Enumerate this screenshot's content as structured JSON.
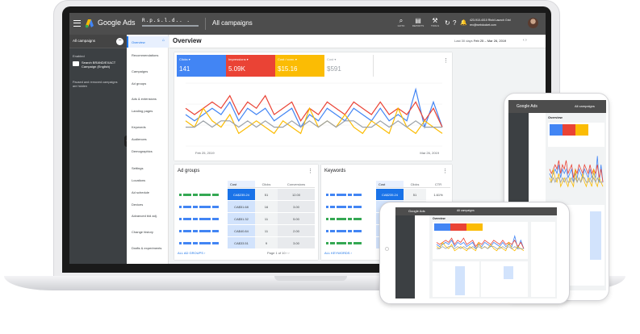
{
  "topbar": {
    "brand": "Google Ads",
    "account_name": "R.p.s.l.d..  .",
    "campaign_title": "All campaigns",
    "tools": [
      {
        "label": "GOTO",
        "icon": "search-icon",
        "glyph": "⌕"
      },
      {
        "label": "REPORTS",
        "icon": "reports-icon",
        "glyph": "▤"
      },
      {
        "label": "TOOLS",
        "icon": "wrench-icon",
        "glyph": "⚒"
      }
    ],
    "refresh_glyph": "↻",
    "help_glyph": "?",
    "notification_glyph": "🔔",
    "customer_id": "423-910-4010 Rishi Launch Grid",
    "customer_email": "rex@webdocket.com"
  },
  "left_panel": {
    "header": "All campaigns",
    "collapse_glyph": "−",
    "section": "Enabled",
    "campaign": "Search BRAND/EXACT Campaign (English)",
    "note": "Paused and removed campaigns are hidden",
    "edge_glyph": "‹"
  },
  "nav": {
    "items": [
      "Overview",
      "Recommendations",
      "Campaigns",
      "Ad groups",
      "Ads & extensions",
      "Landing pages",
      "Keywords",
      "Audiences",
      "Demographics",
      "Settings",
      "Locations",
      "Ad schedule",
      "Devices",
      "Advanced bid adj.",
      "Change history",
      "Drafts & experiments"
    ],
    "home_glyph": "⌂"
  },
  "main": {
    "title": "Overview",
    "date_prefix": "Last 30 days",
    "date_range": "Feb 25 – Mar 26, 2019",
    "date_arrows": "‹  ›",
    "menu_glyph": "⋮"
  },
  "metrics": [
    {
      "label": "Clicks ▾",
      "value": "141",
      "color": "#4285f4",
      "text_color": "#ffffff"
    },
    {
      "label": "Impressions ▾",
      "value": "5.09K",
      "color": "#ea4335",
      "text_color": "#ffffff"
    },
    {
      "label": "Cost / conv. ▾",
      "value": "$15.16",
      "color": "#fbbc04",
      "text_color": "#ffffff"
    },
    {
      "label": "Cost ▾",
      "value": "$591",
      "color": "#ffffff",
      "text_color": "#9aa0a6"
    }
  ],
  "chart_data": {
    "type": "line",
    "x_start_label": "Feb 25, 2019",
    "x_end_label": "Mar 26, 2019",
    "series": [
      {
        "values": [
          5,
          4,
          5,
          6,
          5,
          7,
          4,
          6,
          5,
          6,
          4,
          5,
          6,
          3,
          5,
          4,
          6,
          5,
          4,
          6,
          5,
          4,
          6,
          4,
          5,
          4,
          9,
          3,
          7,
          3
        ],
        "color": "#4285f4"
      },
      {
        "values": [
          6,
          5,
          6,
          7,
          6,
          8,
          5,
          7,
          6,
          8,
          5,
          6,
          7,
          4,
          6,
          5,
          7,
          6,
          5,
          7,
          6,
          5,
          7,
          5,
          6,
          5,
          7,
          4,
          6,
          3
        ],
        "color": "#ea4335"
      },
      {
        "values": [
          4,
          3,
          6,
          4,
          3,
          5,
          2,
          3,
          4,
          3,
          2,
          4,
          3,
          2,
          6,
          3,
          4,
          3,
          5,
          3,
          2,
          4,
          3,
          2,
          6,
          3,
          2,
          4,
          3,
          2
        ],
        "color": "#fbbc04"
      },
      {
        "values": [
          3,
          3,
          4,
          3,
          4,
          4,
          3,
          4,
          3,
          4,
          3,
          3,
          4,
          3,
          4,
          3,
          4,
          3,
          4,
          4,
          3,
          3,
          4,
          3,
          4,
          3,
          4,
          3,
          3,
          3
        ],
        "color": "#9aa0a6"
      }
    ],
    "ylim": [
      0,
      10
    ]
  },
  "ad_groups": {
    "title": "Ad groups",
    "headers": [
      "Cost",
      "Clicks",
      "Conversions"
    ],
    "rows": [
      {
        "cost": "CA$235.24",
        "clicks": "51",
        "conv": "12.00"
      },
      {
        "cost": "CA$51.68",
        "clicks": "16",
        "conv": "3.00"
      },
      {
        "cost": "CA$51.32",
        "clicks": "11",
        "conv": "5.00"
      },
      {
        "cost": "CA$40.84",
        "clicks": "11",
        "conv": "2.00"
      },
      {
        "cost": "CA$33.51",
        "clicks": "9",
        "conv": "3.00"
      }
    ],
    "footer": "ALL AD GROUPS ›",
    "pager": "Page 1 of 10 ‹ ›"
  },
  "keywords": {
    "title": "Keywords",
    "headers": [
      "Cost",
      "Clicks",
      "CTR"
    ],
    "rows": [
      {
        "cost": "CA$235.24",
        "clicks": "51",
        "ctr": "1.61%"
      },
      {
        "cost": "CA$41.11",
        "clicks": "18",
        "ctr": "18.65%"
      },
      {
        "cost": "",
        "clicks": "",
        "ctr": ""
      },
      {
        "cost": "",
        "clicks": "",
        "ctr": ""
      },
      {
        "cost": "",
        "clicks": "",
        "ctr": ""
      }
    ],
    "footer": "ALL KEYWORDS ›"
  },
  "tablet": {
    "brand": "Google Ads",
    "campaign": "All campaigns",
    "overview": "Overview"
  },
  "phone": {
    "brand": "Google Ads",
    "campaign": "All campaigns",
    "overview": "Overview"
  }
}
